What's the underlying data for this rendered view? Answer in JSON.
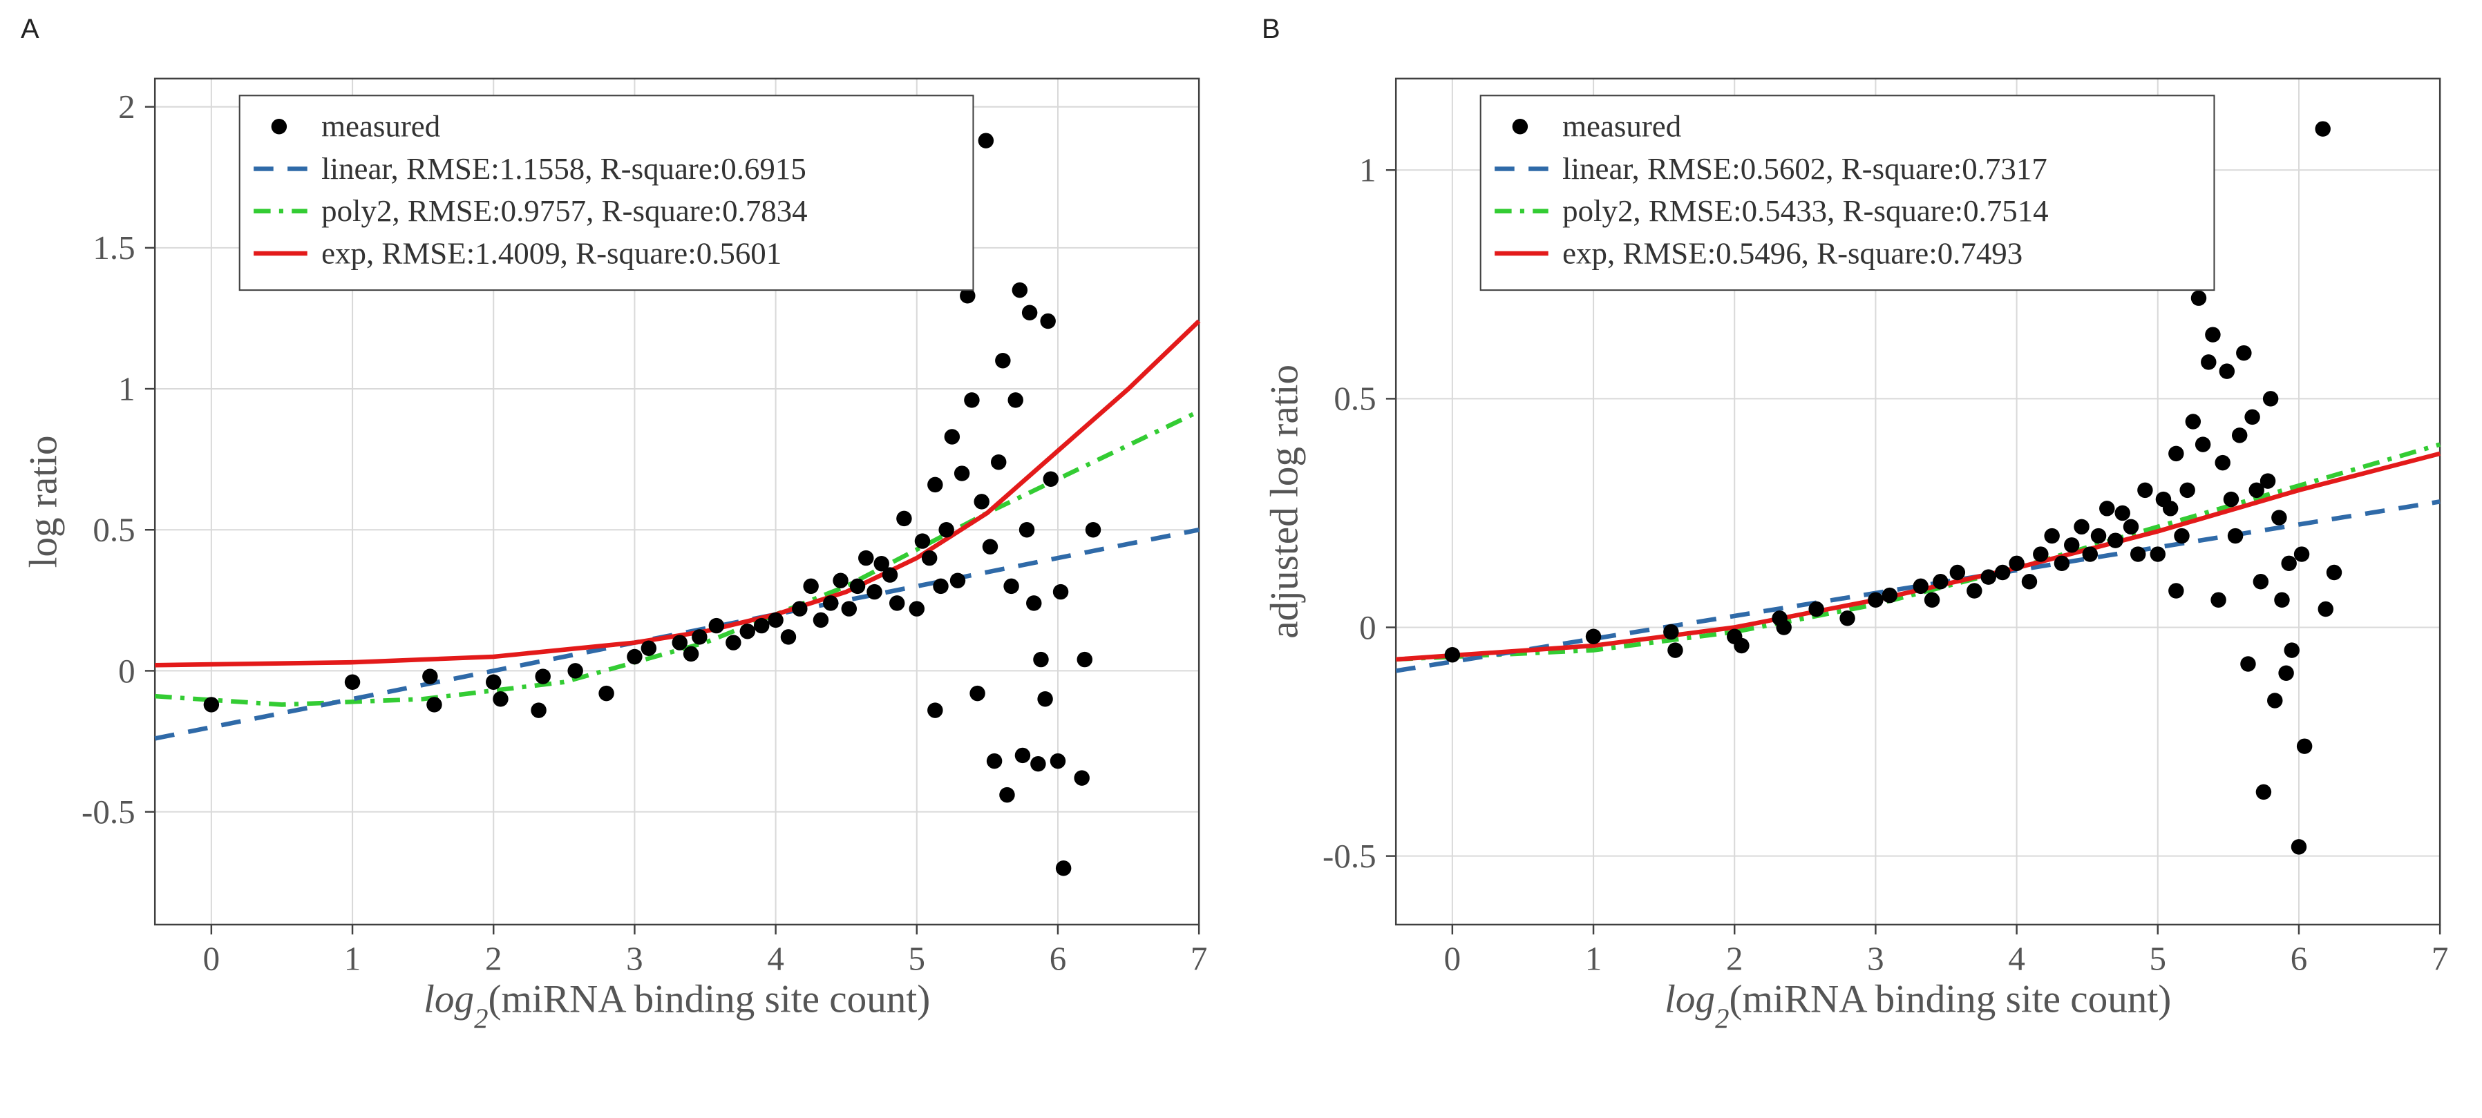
{
  "figure": {
    "background_color": "#ffffff",
    "grid_color": "#d9d9d9",
    "axis_color": "#404040",
    "tick_fontsize": 24,
    "axis_title_fontsize": 28,
    "panel_label_fontsize": 40,
    "legend_fontsize": 22,
    "marker_radius": 5.5,
    "line_width": 3.2,
    "colors": {
      "measured": "#000000",
      "linear": "#2f6aa8",
      "poly2": "#33cc33",
      "exp": "#e31a1a"
    }
  },
  "panels": {
    "A": {
      "label": "A",
      "xlabel_prefix": "log",
      "xlabel_sub": "2",
      "xlabel_suffix": "(miRNA binding site count)",
      "ylabel": "log ratio",
      "xlim": [
        -0.4,
        7.0
      ],
      "ylim": [
        -0.9,
        2.1
      ],
      "xticks": [
        0,
        1,
        2,
        3,
        4,
        5,
        6,
        7
      ],
      "yticks": [
        -0.5,
        0,
        0.5,
        1,
        1.5,
        2
      ],
      "legend": {
        "measured": "measured",
        "linear": "linear, RMSE:1.1558, R-square:0.6915",
        "poly2": "poly2, RMSE:0.9757, R-square:0.7834",
        "exp": "exp, RMSE:1.4009, R-square:0.5601"
      },
      "scatter": [
        [
          0.0,
          -0.12
        ],
        [
          1.0,
          -0.04
        ],
        [
          1.55,
          -0.02
        ],
        [
          1.58,
          -0.12
        ],
        [
          2.0,
          -0.04
        ],
        [
          2.05,
          -0.1
        ],
        [
          2.32,
          -0.14
        ],
        [
          2.35,
          -0.02
        ],
        [
          2.58,
          0.0
        ],
        [
          2.8,
          -0.08
        ],
        [
          3.0,
          0.05
        ],
        [
          3.1,
          0.08
        ],
        [
          3.32,
          0.1
        ],
        [
          3.4,
          0.06
        ],
        [
          3.46,
          0.12
        ],
        [
          3.58,
          0.16
        ],
        [
          3.7,
          0.1
        ],
        [
          3.8,
          0.14
        ],
        [
          3.9,
          0.16
        ],
        [
          4.0,
          0.18
        ],
        [
          4.09,
          0.12
        ],
        [
          4.17,
          0.22
        ],
        [
          4.25,
          0.3
        ],
        [
          4.32,
          0.18
        ],
        [
          4.39,
          0.24
        ],
        [
          4.46,
          0.32
        ],
        [
          4.52,
          0.22
        ],
        [
          4.58,
          0.3
        ],
        [
          4.64,
          0.4
        ],
        [
          4.7,
          0.28
        ],
        [
          4.75,
          0.38
        ],
        [
          4.81,
          0.34
        ],
        [
          4.86,
          0.24
        ],
        [
          4.91,
          0.54
        ],
        [
          5.0,
          0.22
        ],
        [
          5.04,
          0.46
        ],
        [
          5.09,
          0.4
        ],
        [
          5.13,
          0.66
        ],
        [
          5.13,
          -0.14
        ],
        [
          5.17,
          0.3
        ],
        [
          5.21,
          0.5
        ],
        [
          5.25,
          0.83
        ],
        [
          5.29,
          0.32
        ],
        [
          5.32,
          0.7
        ],
        [
          5.36,
          1.33
        ],
        [
          5.39,
          0.96
        ],
        [
          5.43,
          -0.08
        ],
        [
          5.46,
          0.6
        ],
        [
          5.49,
          1.88
        ],
        [
          5.52,
          0.44
        ],
        [
          5.55,
          -0.32
        ],
        [
          5.58,
          0.74
        ],
        [
          5.61,
          1.1
        ],
        [
          5.64,
          -0.44
        ],
        [
          5.67,
          0.3
        ],
        [
          5.7,
          0.96
        ],
        [
          5.73,
          1.35
        ],
        [
          5.75,
          -0.3
        ],
        [
          5.78,
          0.5
        ],
        [
          5.8,
          1.27
        ],
        [
          5.83,
          0.24
        ],
        [
          5.86,
          -0.33
        ],
        [
          5.88,
          0.04
        ],
        [
          5.91,
          -0.1
        ],
        [
          5.93,
          1.24
        ],
        [
          5.95,
          0.68
        ],
        [
          6.0,
          -0.32
        ],
        [
          6.02,
          0.28
        ],
        [
          6.04,
          -0.7
        ],
        [
          6.17,
          -0.38
        ],
        [
          6.19,
          0.04
        ],
        [
          6.25,
          0.5
        ]
      ],
      "curves": {
        "linear": [
          [
            -0.4,
            -0.24
          ],
          [
            7.0,
            0.5
          ]
        ],
        "poly2": [
          [
            -0.4,
            -0.09
          ],
          [
            0.5,
            -0.12
          ],
          [
            1.5,
            -0.1
          ],
          [
            2.5,
            -0.04
          ],
          [
            3.5,
            0.1
          ],
          [
            4.5,
            0.3
          ],
          [
            5.5,
            0.56
          ],
          [
            6.5,
            0.8
          ],
          [
            7.0,
            0.92
          ]
        ],
        "exp": [
          [
            -0.4,
            0.02
          ],
          [
            1.0,
            0.03
          ],
          [
            2.0,
            0.05
          ],
          [
            3.0,
            0.1
          ],
          [
            3.5,
            0.14
          ],
          [
            4.0,
            0.2
          ],
          [
            4.5,
            0.28
          ],
          [
            5.0,
            0.4
          ],
          [
            5.5,
            0.56
          ],
          [
            6.0,
            0.78
          ],
          [
            6.5,
            1.0
          ],
          [
            7.0,
            1.24
          ]
        ]
      }
    },
    "B": {
      "label": "B",
      "xlabel_prefix": "log",
      "xlabel_sub": "2",
      "xlabel_suffix": "(miRNA binding site count)",
      "ylabel": "adjusted log ratio",
      "xlim": [
        -0.4,
        7.0
      ],
      "ylim": [
        -0.65,
        1.2
      ],
      "xticks": [
        0,
        1,
        2,
        3,
        4,
        5,
        6,
        7
      ],
      "yticks": [
        -0.5,
        0,
        0.5,
        1
      ],
      "legend": {
        "measured": "measured",
        "linear": "linear, RMSE:0.5602, R-square:0.7317",
        "poly2": "poly2, RMSE:0.5433, R-square:0.7514",
        "exp": "exp, RMSE:0.5496, R-square:0.7493"
      },
      "scatter": [
        [
          0.0,
          -0.06
        ],
        [
          1.0,
          -0.02
        ],
        [
          1.55,
          -0.01
        ],
        [
          1.58,
          -0.05
        ],
        [
          2.0,
          -0.02
        ],
        [
          2.05,
          -0.04
        ],
        [
          2.32,
          0.02
        ],
        [
          2.35,
          0.0
        ],
        [
          2.58,
          0.04
        ],
        [
          2.8,
          0.02
        ],
        [
          3.0,
          0.06
        ],
        [
          3.1,
          0.07
        ],
        [
          3.32,
          0.09
        ],
        [
          3.4,
          0.06
        ],
        [
          3.46,
          0.1
        ],
        [
          3.58,
          0.12
        ],
        [
          3.7,
          0.08
        ],
        [
          3.8,
          0.11
        ],
        [
          3.9,
          0.12
        ],
        [
          4.0,
          0.14
        ],
        [
          4.09,
          0.1
        ],
        [
          4.17,
          0.16
        ],
        [
          4.25,
          0.2
        ],
        [
          4.32,
          0.14
        ],
        [
          4.39,
          0.18
        ],
        [
          4.46,
          0.22
        ],
        [
          4.52,
          0.16
        ],
        [
          4.58,
          0.2
        ],
        [
          4.64,
          0.26
        ],
        [
          4.7,
          0.19
        ],
        [
          4.75,
          0.25
        ],
        [
          4.81,
          0.22
        ],
        [
          4.86,
          0.16
        ],
        [
          4.91,
          0.3
        ],
        [
          5.0,
          0.16
        ],
        [
          5.04,
          0.28
        ],
        [
          5.09,
          0.26
        ],
        [
          5.13,
          0.38
        ],
        [
          5.13,
          0.08
        ],
        [
          5.17,
          0.2
        ],
        [
          5.21,
          0.3
        ],
        [
          5.25,
          0.45
        ],
        [
          5.29,
          0.72
        ],
        [
          5.32,
          0.4
        ],
        [
          5.36,
          0.58
        ],
        [
          5.39,
          0.64
        ],
        [
          5.43,
          0.06
        ],
        [
          5.46,
          0.36
        ],
        [
          5.49,
          0.56
        ],
        [
          5.52,
          0.28
        ],
        [
          5.55,
          0.2
        ],
        [
          5.58,
          0.42
        ],
        [
          5.61,
          0.6
        ],
        [
          5.64,
          -0.08
        ],
        [
          5.67,
          0.46
        ],
        [
          5.7,
          0.3
        ],
        [
          5.73,
          0.1
        ],
        [
          5.75,
          -0.36
        ],
        [
          5.78,
          0.32
        ],
        [
          5.8,
          0.5
        ],
        [
          5.83,
          -0.16
        ],
        [
          5.86,
          0.24
        ],
        [
          5.88,
          0.06
        ],
        [
          5.91,
          -0.1
        ],
        [
          5.93,
          0.14
        ],
        [
          5.95,
          -0.05
        ],
        [
          6.0,
          -0.48
        ],
        [
          6.02,
          0.16
        ],
        [
          6.04,
          -0.26
        ],
        [
          6.17,
          1.09
        ],
        [
          6.19,
          0.04
        ],
        [
          6.25,
          0.12
        ]
      ],
      "curves": {
        "linear": [
          [
            -0.4,
            -0.095
          ],
          [
            7.0,
            0.275
          ]
        ],
        "poly2": [
          [
            -0.4,
            -0.07
          ],
          [
            1.0,
            -0.05
          ],
          [
            2.0,
            -0.01
          ],
          [
            3.0,
            0.05
          ],
          [
            4.0,
            0.13
          ],
          [
            5.0,
            0.22
          ],
          [
            6.0,
            0.31
          ],
          [
            7.0,
            0.4
          ]
        ],
        "exp": [
          [
            -0.4,
            -0.07
          ],
          [
            1.0,
            -0.04
          ],
          [
            2.0,
            0.0
          ],
          [
            3.0,
            0.06
          ],
          [
            4.0,
            0.13
          ],
          [
            5.0,
            0.21
          ],
          [
            6.0,
            0.3
          ],
          [
            7.0,
            0.38
          ]
        ]
      }
    }
  }
}
